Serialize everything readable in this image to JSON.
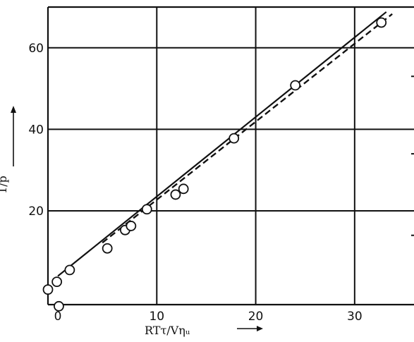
{
  "chart_data": {
    "type": "scatter",
    "title": "",
    "xlabel": "RTτ/Vηᵤ",
    "ylabel": "1/p",
    "xlim": [
      -1,
      36
    ],
    "ylim": [
      -3,
      70
    ],
    "x_ticks": [
      {
        "value": 0,
        "label": "0"
      },
      {
        "value": 10,
        "label": "10"
      },
      {
        "value": 20,
        "label": "20"
      },
      {
        "value": 30,
        "label": "30"
      }
    ],
    "y_ticks": [
      {
        "value": 20,
        "label": "20"
      },
      {
        "value": 40,
        "label": "40"
      },
      {
        "value": 60,
        "label": "60"
      }
    ],
    "grid": true,
    "series": [
      {
        "style": "points",
        "marker": "open-circle",
        "points": [
          {
            "x": -1.0,
            "y": 0.7
          },
          {
            "x": -0.1,
            "y": 2.6
          },
          {
            "x": 0.1,
            "y": -3.4
          },
          {
            "x": 1.2,
            "y": 5.5
          },
          {
            "x": 5.0,
            "y": 10.8
          },
          {
            "x": 6.8,
            "y": 15.3
          },
          {
            "x": 7.4,
            "y": 16.3
          },
          {
            "x": 9.0,
            "y": 20.4
          },
          {
            "x": 11.9,
            "y": 24.0
          },
          {
            "x": 12.7,
            "y": 25.4
          },
          {
            "x": 17.8,
            "y": 37.8
          },
          {
            "x": 24.0,
            "y": 50.8
          },
          {
            "x": 32.7,
            "y": 66.2
          }
        ]
      },
      {
        "style": "solid",
        "points": [
          {
            "x": 0.0,
            "y": 4.0
          },
          {
            "x": 33.2,
            "y": 68.8
          }
        ]
      },
      {
        "style": "dashed",
        "points": [
          {
            "x": 4.5,
            "y": 12.2
          },
          {
            "x": 33.8,
            "y": 68.3
          }
        ]
      }
    ]
  }
}
